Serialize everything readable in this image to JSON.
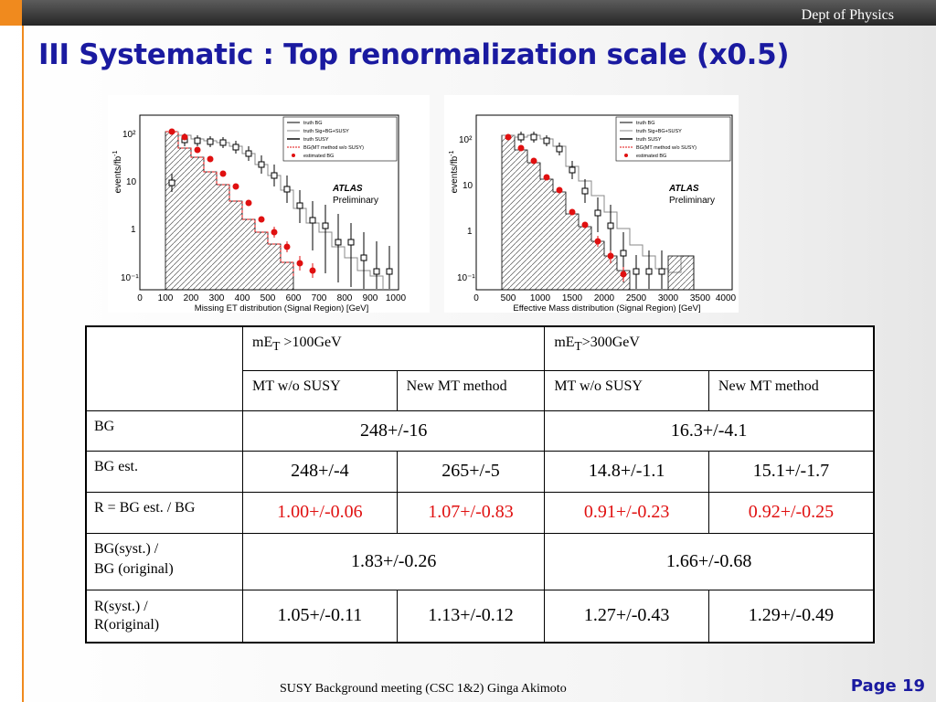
{
  "header": {
    "dept": "Dept of Physics"
  },
  "slide": {
    "title": "III Systematic : Top renormalization scale (x0.5)"
  },
  "plots": [
    {
      "ylabel": "events/fb",
      "ylabel_sup": "-1",
      "xlabel": "Missing  ET distribution (Signal Region) [GeV]",
      "xticks": [
        "0",
        "100",
        "200",
        "300",
        "400",
        "500",
        "600",
        "700",
        "800",
        "900",
        "1000"
      ],
      "yticks": [
        "10²",
        "10",
        "1",
        "10⁻¹"
      ],
      "watermark": [
        "ATLAS",
        "Preliminary"
      ],
      "legend": [
        "truth BG",
        "truth Sig+BG+SUSY",
        "truth SUSY",
        "BG(MT method w/o SUSY)",
        "estimated BG"
      ]
    },
    {
      "ylabel": "events/fb",
      "ylabel_sup": "-1",
      "xlabel": "Effective  Mass   distribution (Signal Region) [GeV]",
      "xticks": [
        "0",
        "500",
        "1000",
        "1500",
        "2000",
        "2500",
        "3000",
        "3500",
        "4000"
      ],
      "yticks": [
        "10²",
        "10",
        "1",
        "10⁻¹"
      ],
      "watermark": [
        "ATLAS",
        "Preliminary"
      ],
      "legend": [
        "truth BG",
        "truth Sig+BG+SUSY",
        "truth SUSY",
        "BG(MT method w/o SUSY)",
        "estimated BG"
      ]
    }
  ],
  "table": {
    "group1": {
      "pre": "mE",
      "sub": "T",
      "post": " >100GeV"
    },
    "group2": {
      "pre": "mE",
      "sub": "T",
      "post": ">300GeV"
    },
    "subheaders": [
      "MT w/o SUSY",
      "New MT method",
      "MT w/o SUSY",
      "New MT method"
    ],
    "rows": {
      "bg": {
        "label": "BG",
        "v1": "248+/-16",
        "v2": "16.3+/-4.1"
      },
      "bgest": {
        "label": "BG est.",
        "values": [
          "248+/-4",
          "265+/-5",
          "14.8+/-1.1",
          "15.1+/-1.7"
        ]
      },
      "ratio": {
        "label": "R = BG est. / BG",
        "values": [
          "1.00+/-0.06",
          "1.07+/-0.83",
          "0.91+/-0.23",
          "0.92+/-0.25"
        ],
        "color": "#e01010"
      },
      "bgsyst": {
        "label_line1": "BG(syst.) /",
        "label_line2": "BG (original)",
        "v1": "1.83+/-0.26",
        "v2": "1.66+/-0.68"
      },
      "rsyst": {
        "label_line1": " R(syst.) /",
        "label_line2": "R(original)",
        "values": [
          "1.05+/-0.11",
          "1.13+/-0.12",
          "1.27+/-0.43",
          "1.29+/-0.49"
        ]
      }
    }
  },
  "footer": {
    "text": "SUSY Background meeting  (CSC 1&2) Ginga Akimoto"
  },
  "page": {
    "label": "Page 19"
  },
  "colors": {
    "title": "#1a1aa0",
    "accent": "#f08a1e",
    "estimated": "#e01010"
  }
}
